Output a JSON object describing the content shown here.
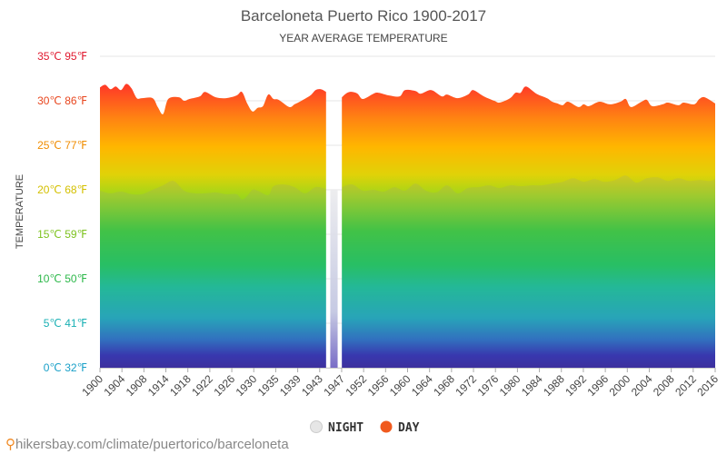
{
  "chart_data": {
    "type": "area",
    "title": "Barceloneta Puerto Rico 1900-2017",
    "subtitle": "YEAR AVERAGE TEMPERATURE",
    "ylabel": "TEMPERATURE",
    "ylim": [
      0,
      35
    ],
    "y_ticks": [
      {
        "value": 0,
        "label": "0℃ 32℉",
        "color": "#1aa0c8"
      },
      {
        "value": 5,
        "label": "5℃ 41℉",
        "color": "#1ab0b4"
      },
      {
        "value": 10,
        "label": "10℃ 50℉",
        "color": "#2db84a"
      },
      {
        "value": 15,
        "label": "15℃ 59℉",
        "color": "#7dc21e"
      },
      {
        "value": 20,
        "label": "20℃ 68℉",
        "color": "#d4c000"
      },
      {
        "value": 25,
        "label": "25℃ 77℉",
        "color": "#f08c00"
      },
      {
        "value": 30,
        "label": "30℃ 86℉",
        "color": "#e8461e"
      },
      {
        "value": 35,
        "label": "35℃ 95℉",
        "color": "#e0182e"
      }
    ],
    "xlim": [
      1900,
      2017
    ],
    "x_tick_labels": [
      "1900",
      "1904",
      "1908",
      "1914",
      "1918",
      "1922",
      "1926",
      "1930",
      "1935",
      "1939",
      "1943",
      "1947",
      "1952",
      "1956",
      "1960",
      "1964",
      "1968",
      "1972",
      "1976",
      "1980",
      "1984",
      "1988",
      "1992",
      "1996",
      "2000",
      "2004",
      "2008",
      "2012",
      "2016"
    ],
    "gap": [
      1944,
      1945
    ],
    "series": [
      {
        "name": "DAY",
        "color": "#f05a1e",
        "x": [
          1900,
          1901,
          1902,
          1903,
          1904,
          1905,
          1906,
          1907,
          1908,
          1910,
          1911,
          1912,
          1913,
          1915,
          1916,
          1917,
          1919,
          1920,
          1922,
          1924,
          1926,
          1927,
          1928,
          1929,
          1930,
          1931,
          1932,
          1933,
          1934,
          1936,
          1937,
          1938,
          1940,
          1941,
          1942,
          1943,
          1946,
          1947,
          1948,
          1949,
          1950,
          1952,
          1953,
          1955,
          1957,
          1958,
          1960,
          1961,
          1963,
          1965,
          1966,
          1968,
          1970,
          1971,
          1973,
          1975,
          1976,
          1978,
          1979,
          1980,
          1981,
          1983,
          1985,
          1986,
          1987,
          1988,
          1989,
          1991,
          1992,
          1993,
          1995,
          1997,
          1999,
          2000,
          2001,
          2003,
          2004,
          2005,
          2007,
          2008,
          2010,
          2011,
          2013,
          2014,
          2015,
          2017
        ],
        "values": [
          31.5,
          31.8,
          31.3,
          31.6,
          31.2,
          31.9,
          31.4,
          30.3,
          30.3,
          30.3,
          29.3,
          28.5,
          30.2,
          30.4,
          30.0,
          30.2,
          30.5,
          31.0,
          30.4,
          30.3,
          30.6,
          31.0,
          29.7,
          28.8,
          29.2,
          29.4,
          30.7,
          30.2,
          30.1,
          29.3,
          29.6,
          29.9,
          30.6,
          31.2,
          31.3,
          31.0,
          30.4,
          30.9,
          31.0,
          30.8,
          30.2,
          30.8,
          30.9,
          30.6,
          30.5,
          31.2,
          31.1,
          30.8,
          31.2,
          30.5,
          30.7,
          30.3,
          30.7,
          31.2,
          30.5,
          30.0,
          29.8,
          30.3,
          30.9,
          30.9,
          31.6,
          30.8,
          30.3,
          29.9,
          29.7,
          29.5,
          29.9,
          29.3,
          29.6,
          29.4,
          29.9,
          29.6,
          29.9,
          30.2,
          29.3,
          29.9,
          30.1,
          29.4,
          29.6,
          29.8,
          29.5,
          29.8,
          29.6,
          30.2,
          30.4,
          29.7
        ]
      },
      {
        "name": "NIGHT",
        "color": "#e0e0e0",
        "x": [
          1900,
          1902,
          1904,
          1906,
          1908,
          1910,
          1912,
          1914,
          1916,
          1918,
          1920,
          1922,
          1924,
          1926,
          1927,
          1928,
          1929,
          1930,
          1932,
          1933,
          1935,
          1937,
          1939,
          1941,
          1943,
          1946,
          1948,
          1950,
          1952,
          1954,
          1956,
          1958,
          1960,
          1962,
          1964,
          1966,
          1968,
          1970,
          1972,
          1974,
          1976,
          1978,
          1980,
          1982,
          1984,
          1986,
          1988,
          1990,
          1992,
          1994,
          1996,
          1998,
          2000,
          2002,
          2004,
          2006,
          2008,
          2010,
          2012,
          2014,
          2016,
          2017
        ],
        "values": [
          19.9,
          19.6,
          19.8,
          19.5,
          19.5,
          20.0,
          20.5,
          21.0,
          19.9,
          19.6,
          19.6,
          19.7,
          19.5,
          19.5,
          18.9,
          19.3,
          20.0,
          19.9,
          19.4,
          20.4,
          20.6,
          20.3,
          19.6,
          20.3,
          20.1,
          20.3,
          20.6,
          19.9,
          20.0,
          19.8,
          20.3,
          19.9,
          20.7,
          19.9,
          19.7,
          20.5,
          19.6,
          20.2,
          20.3,
          20.5,
          20.2,
          20.5,
          20.4,
          20.5,
          20.5,
          20.7,
          20.9,
          21.3,
          20.9,
          21.2,
          20.9,
          21.1,
          21.6,
          20.8,
          21.3,
          21.4,
          21.0,
          21.3,
          21.0,
          21.1,
          21.0,
          21.2
        ]
      }
    ],
    "legend": {
      "position": "bottom-center",
      "items": [
        {
          "label": "NIGHT",
          "color": "#e0e0e0"
        },
        {
          "label": "DAY",
          "color": "#f05a1e"
        }
      ]
    },
    "grid": true
  },
  "footer": {
    "watermark": "hikersbay.com/climate/puertorico/barceloneta",
    "pin_icon": "map-pin-icon"
  }
}
